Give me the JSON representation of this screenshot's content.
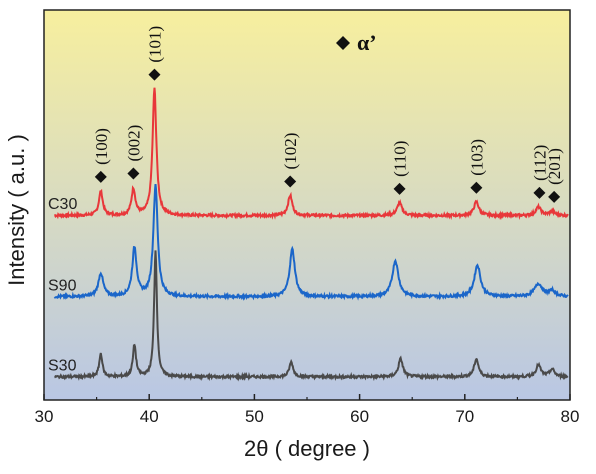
{
  "chart_data": {
    "type": "line",
    "xlabel": "2θ ( degree )",
    "ylabel": "Intensity ( a.u. )",
    "xlim": [
      30,
      80
    ],
    "xticks": [
      "30",
      "40",
      "50",
      "60",
      "70",
      "80"
    ],
    "y_ticks_shown": false,
    "grid": false,
    "legend": {
      "marker": "diamond",
      "label": "α’",
      "placement": "top-center"
    },
    "background_gradient": [
      "#f7ef9e",
      "#b9c7e4"
    ],
    "series": [
      {
        "name": "C30",
        "color": "#e8373a",
        "baseline": 1.75,
        "noise": 0.012,
        "peaks": [
          {
            "x": 35.4,
            "h": 0.23,
            "w": 0.22
          },
          {
            "x": 38.5,
            "h": 0.25,
            "w": 0.22
          },
          {
            "x": 40.5,
            "h": 1.2,
            "w": 0.22
          },
          {
            "x": 53.4,
            "h": 0.19,
            "w": 0.25
          },
          {
            "x": 63.8,
            "h": 0.12,
            "w": 0.28
          },
          {
            "x": 71.1,
            "h": 0.13,
            "w": 0.28
          },
          {
            "x": 77.0,
            "h": 0.08,
            "w": 0.3
          },
          {
            "x": 78.3,
            "h": 0.04,
            "w": 0.3
          }
        ]
      },
      {
        "name": "S90",
        "color": "#1b66c9",
        "baseline": 0.98,
        "noise": 0.012,
        "peaks": [
          {
            "x": 35.4,
            "h": 0.22,
            "w": 0.28
          },
          {
            "x": 38.6,
            "h": 0.46,
            "w": 0.25
          },
          {
            "x": 40.6,
            "h": 1.05,
            "w": 0.25
          },
          {
            "x": 53.6,
            "h": 0.45,
            "w": 0.3
          },
          {
            "x": 63.4,
            "h": 0.34,
            "w": 0.35
          },
          {
            "x": 71.2,
            "h": 0.3,
            "w": 0.35
          },
          {
            "x": 77.0,
            "h": 0.12,
            "w": 0.45
          },
          {
            "x": 78.3,
            "h": 0.05,
            "w": 0.4
          }
        ]
      },
      {
        "name": "S30",
        "color": "#4a4a4a",
        "baseline": 0.22,
        "noise": 0.012,
        "peaks": [
          {
            "x": 35.4,
            "h": 0.22,
            "w": 0.18
          },
          {
            "x": 38.6,
            "h": 0.3,
            "w": 0.18
          },
          {
            "x": 40.6,
            "h": 1.2,
            "w": 0.16
          },
          {
            "x": 53.5,
            "h": 0.14,
            "w": 0.22
          },
          {
            "x": 63.9,
            "h": 0.17,
            "w": 0.25
          },
          {
            "x": 71.1,
            "h": 0.17,
            "w": 0.25
          },
          {
            "x": 77.0,
            "h": 0.11,
            "w": 0.28
          },
          {
            "x": 78.3,
            "h": 0.07,
            "w": 0.28
          }
        ]
      }
    ],
    "annotations": [
      {
        "text": "(100)",
        "x": 35.4
      },
      {
        "text": "(002)",
        "x": 38.5
      },
      {
        "text": "(101)",
        "x": 40.5
      },
      {
        "text": "(102)",
        "x": 53.4
      },
      {
        "text": "(110)",
        "x": 63.8
      },
      {
        "text": "(103)",
        "x": 71.1
      },
      {
        "text": "(112)",
        "x": 77.0
      },
      {
        "text": "(201)",
        "x": 78.3
      }
    ]
  }
}
